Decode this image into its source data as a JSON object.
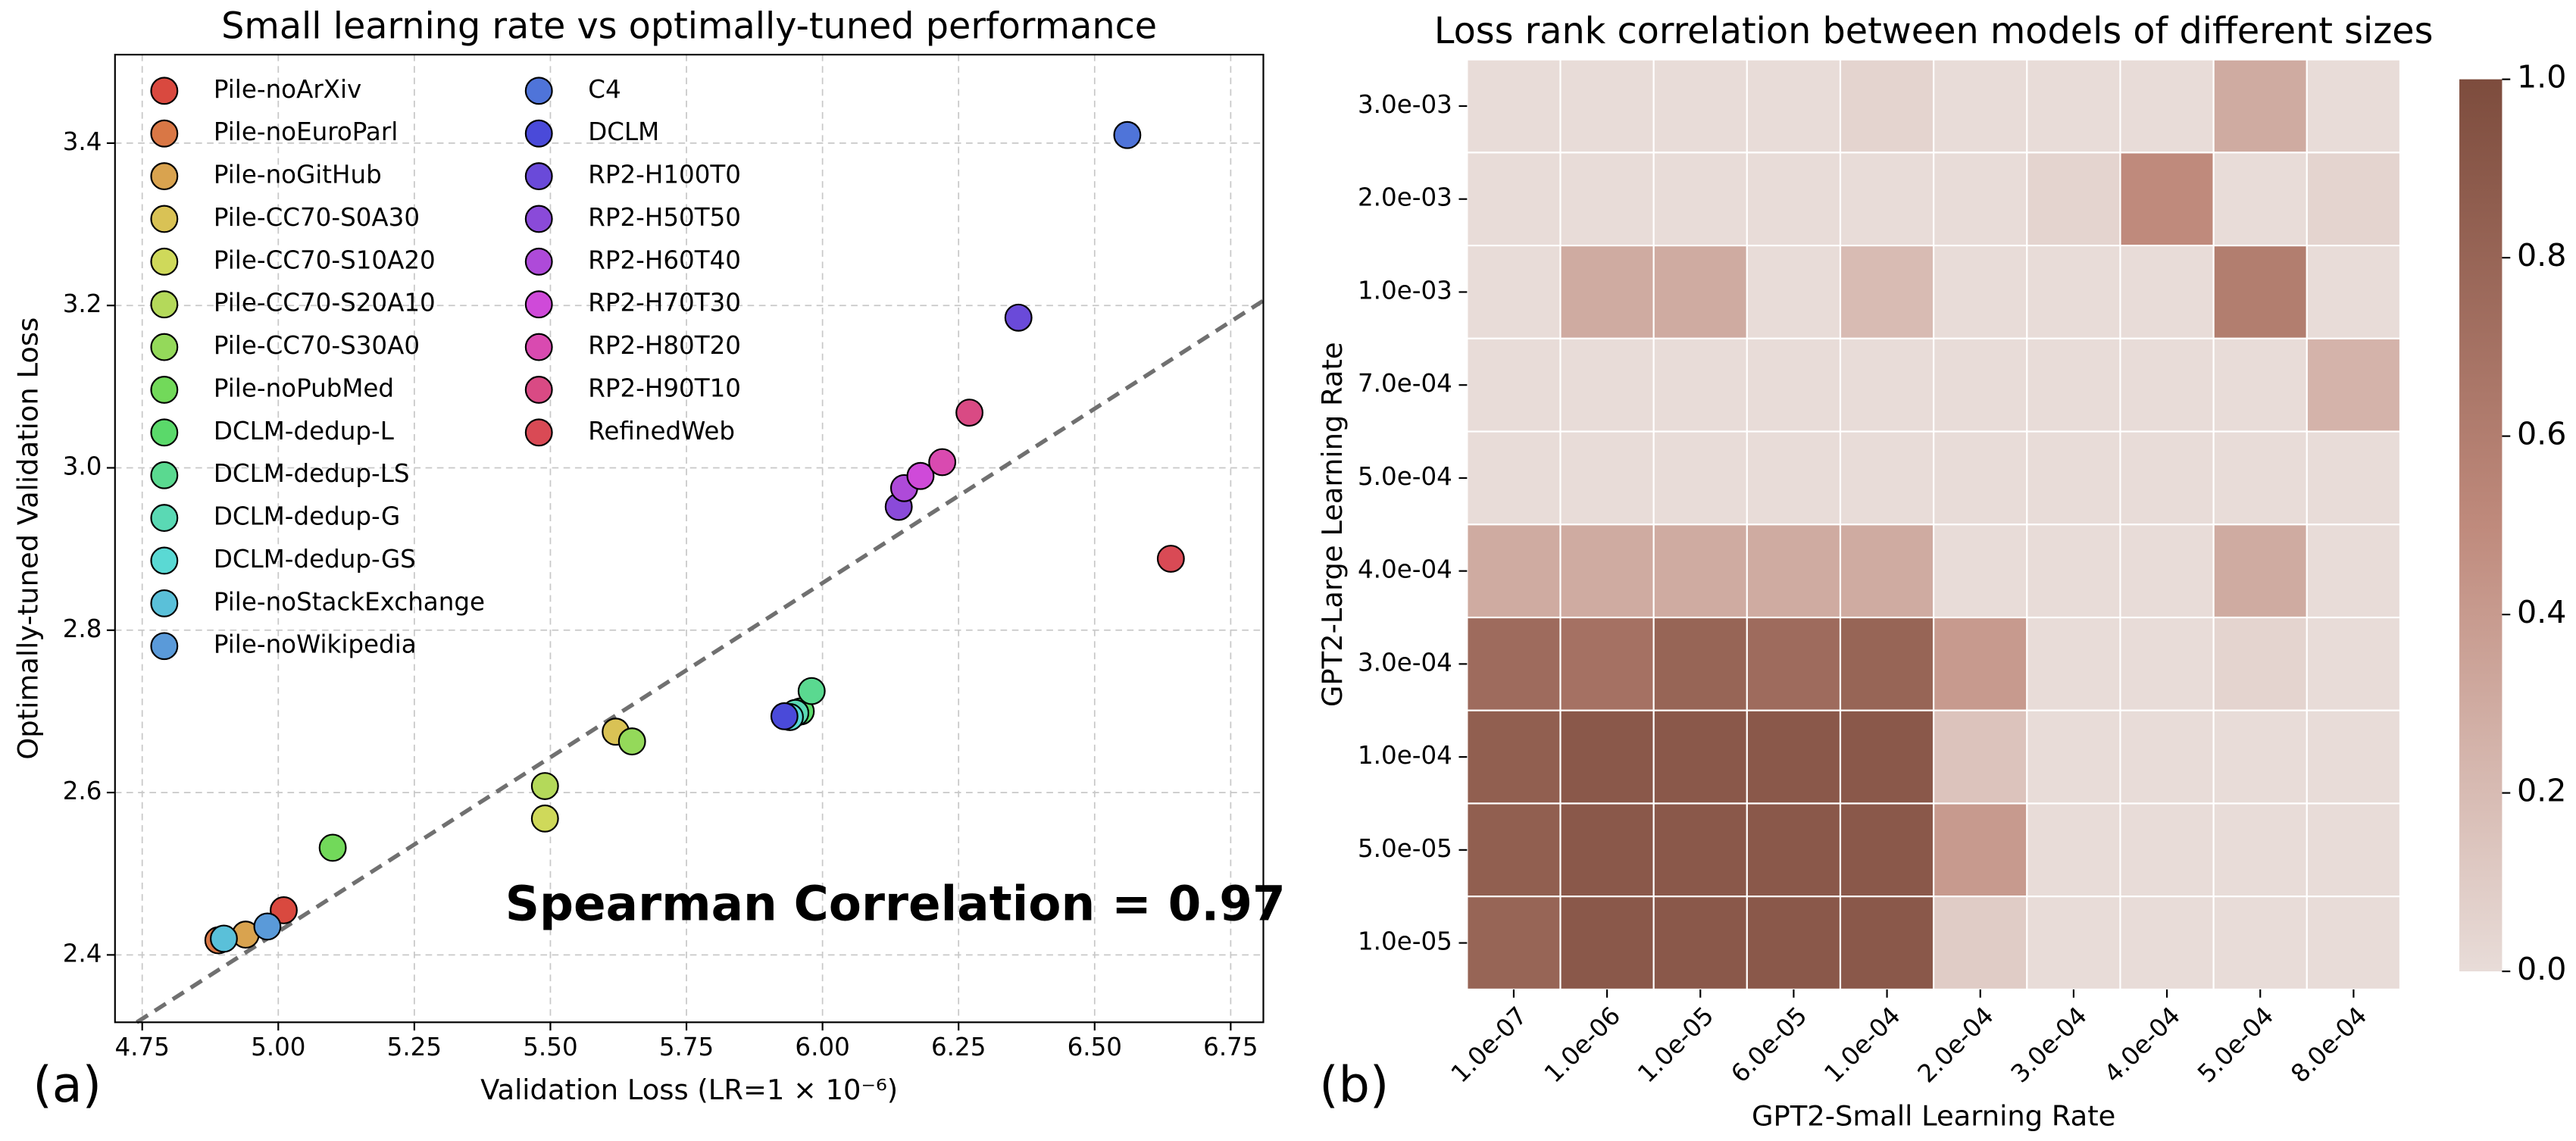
{
  "chart_data": [
    {
      "type": "scatter",
      "title": "Small learning rate vs optimally-tuned performance",
      "xlabel": "Validation Loss (LR=1 × 10⁻⁶)",
      "ylabel": "Optimally-tuned Validation Loss",
      "panel_label": "(a)",
      "annotation": "Spearman Correlation = 0.97",
      "xlim": [
        4.7,
        6.81
      ],
      "ylim": [
        2.317,
        3.509
      ],
      "xticks": [
        4.75,
        {
          "value": 5,
          "label": "5.00"
        },
        5.25,
        {
          "value": 5.5,
          "label": "5.50"
        },
        5.75,
        {
          "value": 6,
          "label": "6.00"
        },
        6.25,
        {
          "value": 6.5,
          "label": "6.50"
        },
        6.75
      ],
      "yticks": [
        2.4,
        2.6,
        2.8,
        {
          "value": 3,
          "label": "3.0"
        },
        3.2,
        3.4
      ],
      "grid": true,
      "reference_line": {
        "x": [
          4.74,
          6.81
        ],
        "y": [
          2.317,
          3.206
        ],
        "color": "#707070"
      },
      "series": [
        {
          "name": "Pile-noArXiv",
          "color": "#d9493f",
          "x": [
            5.01
          ],
          "values": [
            2.455
          ]
        },
        {
          "name": "Pile-noEuroParl",
          "color": "#d97745",
          "x": [
            4.89
          ],
          "values": [
            2.418
          ]
        },
        {
          "name": "Pile-noGitHub",
          "color": "#d9a34f",
          "x": [
            4.94
          ],
          "values": [
            2.425
          ]
        },
        {
          "name": "Pile-CC70-S0A30",
          "color": "#d9c255",
          "x": [
            5.62
          ],
          "values": [
            2.675
          ]
        },
        {
          "name": "Pile-CC70-S10A20",
          "color": "#cfd95a",
          "x": [
            5.49
          ],
          "values": [
            2.568
          ]
        },
        {
          "name": "Pile-CC70-S20A10",
          "color": "#b4d95a",
          "x": [
            5.49
          ],
          "values": [
            2.608
          ]
        },
        {
          "name": "Pile-CC70-S30A0",
          "color": "#94d95a",
          "x": [
            5.65
          ],
          "values": [
            2.663
          ]
        },
        {
          "name": "Pile-noPubMed",
          "color": "#72d95a",
          "x": [
            5.1
          ],
          "values": [
            2.532
          ]
        },
        {
          "name": "DCLM-dedup-L",
          "color": "#5ad96a",
          "x": [
            5.96
          ],
          "values": [
            2.7
          ]
        },
        {
          "name": "DCLM-dedup-LS",
          "color": "#5ad990",
          "x": [
            5.98
          ],
          "values": [
            2.725
          ]
        },
        {
          "name": "DCLM-dedup-G",
          "color": "#5ad9b4",
          "x": [
            5.95
          ],
          "values": [
            2.698
          ]
        },
        {
          "name": "DCLM-dedup-GS",
          "color": "#5ad9d4",
          "x": [
            5.94
          ],
          "values": [
            2.693
          ]
        },
        {
          "name": "Pile-noStackExchange",
          "color": "#5ac0d9",
          "x": [
            4.9
          ],
          "values": [
            2.42
          ]
        },
        {
          "name": "Pile-noWikipedia",
          "color": "#5a9ad9",
          "x": [
            4.98
          ],
          "values": [
            2.435
          ]
        },
        {
          "name": "C4",
          "color": "#4f74d9",
          "x": [
            6.56
          ],
          "values": [
            3.41
          ]
        },
        {
          "name": "DCLM",
          "color": "#4a4ad9",
          "x": [
            5.93
          ],
          "values": [
            2.694
          ]
        },
        {
          "name": "RP2-H100T0",
          "color": "#6a4ad9",
          "x": [
            6.36
          ],
          "values": [
            3.185
          ]
        },
        {
          "name": "RP2-H50T50",
          "color": "#8a4ad9",
          "x": [
            6.14
          ],
          "values": [
            2.952
          ]
        },
        {
          "name": "RP2-H60T40",
          "color": "#ae4ad9",
          "x": [
            6.15
          ],
          "values": [
            2.975
          ]
        },
        {
          "name": "RP2-H70T30",
          "color": "#cf4ad9",
          "x": [
            6.18
          ],
          "values": [
            2.99
          ]
        },
        {
          "name": "RP2-H80T20",
          "color": "#d94ab0",
          "x": [
            6.22
          ],
          "values": [
            3.007
          ]
        },
        {
          "name": "RP2-H90T10",
          "color": "#d94a84",
          "x": [
            6.27
          ],
          "values": [
            3.068
          ]
        },
        {
          "name": "RefinedWeb",
          "color": "#d94a55",
          "x": [
            6.64
          ],
          "values": [
            2.888
          ]
        }
      ]
    },
    {
      "type": "heatmap",
      "title": "Loss rank correlation between models of different sizes",
      "xlabel": "GPT2-Small Learning Rate",
      "ylabel": "GPT2-Large Learning Rate",
      "panel_label": "(b)",
      "x_categories": [
        "1.0e-07",
        "1.0e-06",
        "1.0e-05",
        "6.0e-05",
        "1.0e-04",
        "2.0e-04",
        "3.0e-04",
        "4.0e-04",
        "5.0e-04",
        "8.0e-04"
      ],
      "y_categories": [
        "3.0e-03",
        "2.0e-03",
        "1.0e-03",
        "7.0e-04",
        "5.0e-04",
        "4.0e-04",
        "3.0e-04",
        "1.0e-04",
        "5.0e-05",
        "1.0e-05"
      ],
      "values": [
        [
          0,
          0,
          0,
          0,
          0.05,
          0,
          0,
          0,
          0.3,
          0
        ],
        [
          0,
          0,
          0,
          0,
          0,
          0,
          0.05,
          0.5,
          0,
          0.05
        ],
        [
          0,
          0.3,
          0.3,
          0,
          0.2,
          0,
          0,
          0,
          0.6,
          0
        ],
        [
          0,
          0,
          0,
          0,
          0,
          0,
          0,
          0,
          0,
          0.25
        ],
        [
          0,
          0,
          0,
          0,
          0,
          0,
          0,
          0,
          0,
          0
        ],
        [
          0.3,
          0.3,
          0.3,
          0.3,
          0.3,
          0,
          0,
          0,
          0.3,
          0
        ],
        [
          0.75,
          0.7,
          0.8,
          0.75,
          0.8,
          0.4,
          0,
          0,
          0.05,
          0
        ],
        [
          0.85,
          0.9,
          0.9,
          0.9,
          0.9,
          0.15,
          0,
          0,
          0,
          0
        ],
        [
          0.85,
          0.9,
          0.9,
          0.9,
          0.9,
          0.4,
          0,
          0,
          0,
          0
        ],
        [
          0.8,
          0.9,
          0.9,
          0.9,
          0.9,
          0.1,
          0,
          0,
          0,
          0
        ]
      ],
      "colormap": [
        "#e8dcd8",
        "#bf8a7c",
        "#7d4c3d"
      ],
      "clim": [
        0,
        1
      ],
      "cticks": [
        {
          "value": 0,
          "label": "0.0"
        },
        0.2,
        0.4,
        0.6,
        0.8,
        {
          "value": 1,
          "label": "1.0"
        }
      ]
    }
  ]
}
